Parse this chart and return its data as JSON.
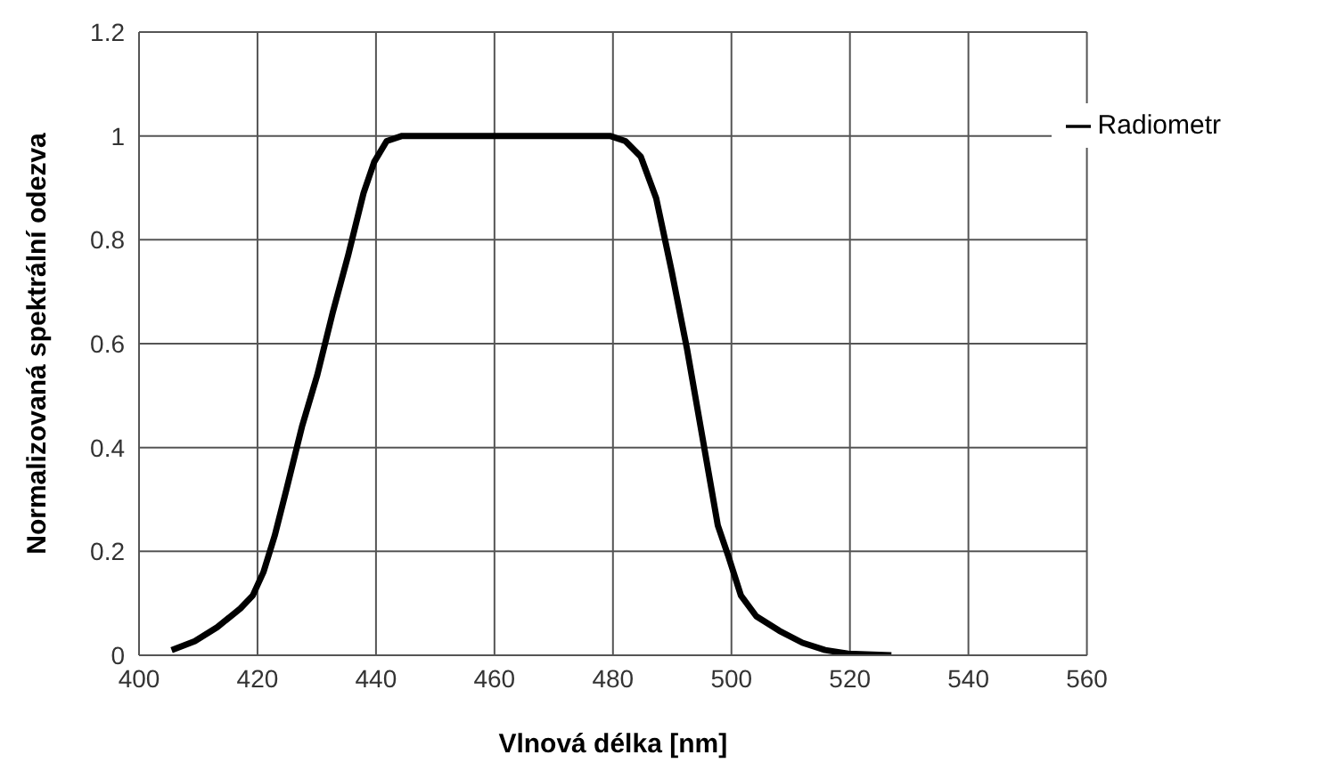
{
  "chart_data": {
    "type": "line",
    "xlabel": "Vlnová délka [nm]",
    "ylabel": "Normalizovaná spektrální odezva",
    "xlim": [
      400,
      560
    ],
    "xticks": [
      400,
      420,
      440,
      460,
      480,
      500,
      520,
      540,
      560
    ],
    "ylim": [
      0,
      1.2
    ],
    "yticks": [
      0,
      0.2,
      0.4,
      0.6,
      0.8,
      1,
      1.2
    ],
    "grid": true,
    "legend": "top right",
    "marker": "none",
    "line_style": "solid",
    "series": [
      {
        "name": "Radiometr",
        "color": "#000000",
        "x": [
          405.5,
          409.4,
          413.2,
          417.1,
          419.2,
          421,
          422.9,
          424.9,
          427.5,
          430.1,
          432.7,
          435.3,
          437.9,
          439.7,
          441.8,
          444.4,
          453.5,
          466.5,
          479.5,
          482.1,
          484.7,
          487.3,
          489.9,
          492.5,
          495.1,
          497.7,
          499.5,
          501.6,
          504.2,
          508.1,
          512,
          515.8,
          519.7,
          527
        ],
        "values": [
          0.01,
          0.027,
          0.054,
          0.09,
          0.115,
          0.16,
          0.23,
          0.32,
          0.44,
          0.54,
          0.66,
          0.77,
          0.89,
          0.95,
          0.99,
          1.0,
          1.0,
          1.0,
          1.0,
          0.99,
          0.96,
          0.88,
          0.74,
          0.59,
          0.42,
          0.25,
          0.19,
          0.115,
          0.075,
          0.047,
          0.024,
          0.01,
          0.003,
          0
        ]
      }
    ]
  }
}
